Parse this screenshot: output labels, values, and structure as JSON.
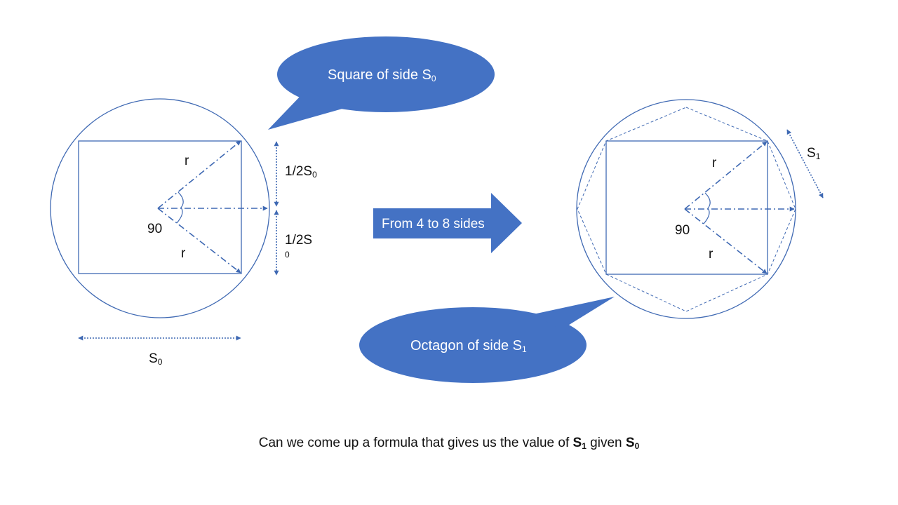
{
  "colors": {
    "stroke": "#3f69b3",
    "fill": "#4472c4",
    "text": "#111111",
    "callout_text": "#ffffff"
  },
  "left_figure": {
    "radius_label_top": "r",
    "radius_label_bottom": "r",
    "angle_label": "90",
    "half_side_top": {
      "prefix": "1/2S",
      "sub": "0"
    },
    "half_side_bottom": {
      "prefix": "1/2S",
      "sub": "0"
    },
    "side_label": {
      "prefix": "S",
      "sub": "0"
    }
  },
  "right_figure": {
    "radius_label_top": "r",
    "radius_label_bottom": "r",
    "angle_label": "90",
    "octagon_side_label": {
      "prefix": "S",
      "sub": "1"
    }
  },
  "callout_square": {
    "prefix": "Square of side S",
    "sub": "0"
  },
  "callout_octagon": {
    "prefix": "Octagon of side S",
    "sub": "1"
  },
  "transition_arrow": {
    "label": "From 4 to 8 sides"
  },
  "question": {
    "text": "Can we come up a formula that gives us the value of ",
    "s1": "S",
    "s1_sub": "1",
    "middle": " given ",
    "s0": "S",
    "s0_sub": "0"
  }
}
